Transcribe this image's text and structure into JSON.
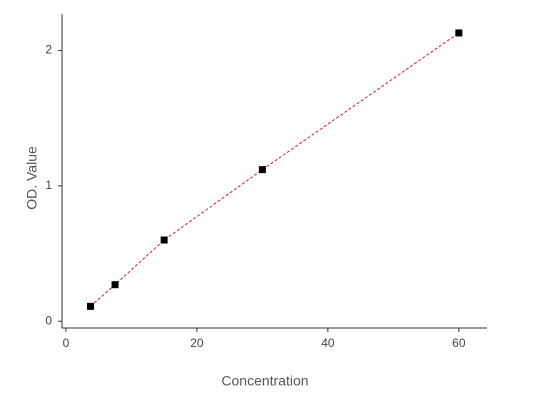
{
  "chart_data": {
    "type": "scatter",
    "xlabel": "Concentration",
    "ylabel": "OD. Value",
    "x": [
      3.75,
      7.5,
      15,
      30,
      60
    ],
    "values": [
      0.11,
      0.27,
      0.6,
      1.12,
      2.13
    ],
    "color": "#000000",
    "line_color": "#cc2233",
    "xlim": [
      -0.6,
      64.3
    ],
    "ylim": [
      -0.05,
      2.27
    ],
    "xticks": [
      0,
      20,
      40,
      60
    ],
    "yticks": [
      0,
      1,
      2
    ]
  }
}
